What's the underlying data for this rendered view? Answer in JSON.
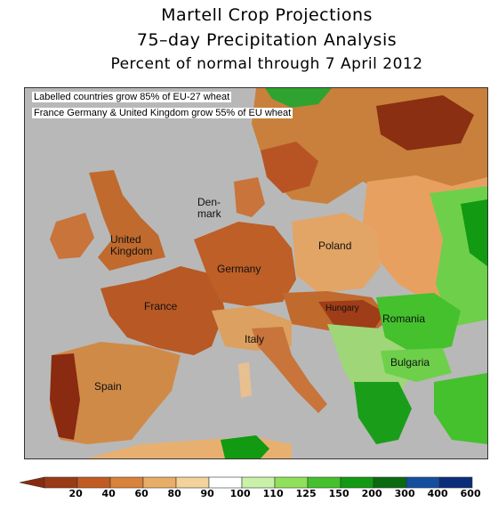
{
  "title": {
    "line1": "Martell Crop Projections",
    "line2": "75–day Precipitation Analysis",
    "line3": "Percent of normal through 7 April 2012"
  },
  "notes": {
    "note1": "Labelled countries grow 85% of EU-27 wheat",
    "note2": "France Germany & United Kingdom grow 55% of EU wheat"
  },
  "countries": {
    "uk": "United\nKingdom",
    "denmark": "Den-\nmark",
    "germany": "Germany",
    "france": "France",
    "poland": "Poland",
    "hungary": "Hungary",
    "romania": "Romania",
    "italy": "Italy",
    "bulgaria": "Bulgaria",
    "spain": "Spain"
  },
  "legend": {
    "ticks": [
      "20",
      "40",
      "60",
      "80",
      "90",
      "100",
      "110",
      "125",
      "150",
      "200",
      "300",
      "400",
      "600"
    ],
    "colors": [
      "#9b3a16",
      "#c25b21",
      "#d98239",
      "#e8ad67",
      "#f4d39a",
      "#ffffff",
      "#c9f2a8",
      "#8fe05a",
      "#44c12c",
      "#129a12",
      "#0a6a10",
      "#134f9e",
      "#0a2c7a"
    ]
  }
}
